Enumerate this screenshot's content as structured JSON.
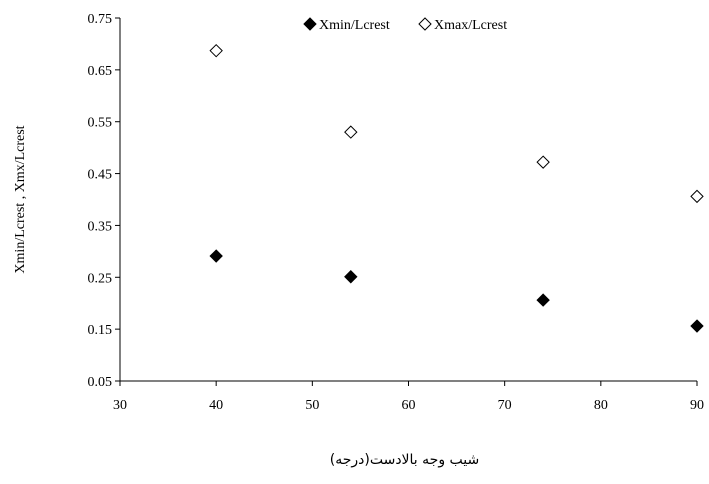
{
  "chart_data": {
    "type": "scatter",
    "xlabel": "شیب وجه بالادست(درجه)",
    "ylabel": "Xmin/Lcrest   ,   Xmx/Lcrest",
    "xlim": [
      30,
      90
    ],
    "ylim": [
      0.05,
      0.75
    ],
    "x_ticks": [
      "30",
      "40",
      "50",
      "60",
      "70",
      "80",
      "90"
    ],
    "y_ticks": [
      "0.05",
      "0.15",
      "0.25",
      "0.35",
      "0.45",
      "0.55",
      "0.65",
      "0.75"
    ],
    "grid": false,
    "legend_position": "top",
    "series": [
      {
        "name": "Xmin/Lcrest",
        "marker": "filled-diamond",
        "color": "#000000",
        "points": [
          [
            40,
            0.291
          ],
          [
            54,
            0.251
          ],
          [
            74,
            0.206
          ],
          [
            90,
            0.156
          ]
        ]
      },
      {
        "name": "Xmax/Lcrest",
        "marker": "open-diamond",
        "color": "#000000",
        "points": [
          [
            40,
            0.687
          ],
          [
            54,
            0.53
          ],
          [
            74,
            0.472
          ],
          [
            90,
            0.406
          ]
        ]
      }
    ]
  }
}
